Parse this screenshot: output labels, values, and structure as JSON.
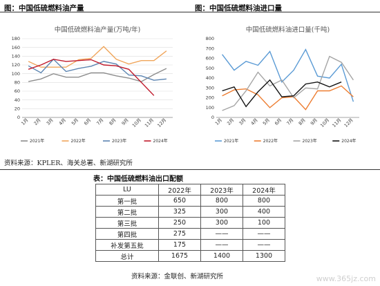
{
  "figure1": {
    "label": "图：中国低硫燃料油产量",
    "chart_data": {
      "type": "line",
      "title": "中国低硫燃料油产量(万吨/年)",
      "categories": [
        "1月",
        "2月",
        "3月",
        "4月",
        "5月",
        "6月",
        "7月",
        "8月",
        "9月",
        "10月",
        "11月",
        "12月"
      ],
      "ylim": [
        0,
        180
      ],
      "yticks": [
        0,
        20,
        40,
        60,
        80,
        100,
        120,
        140,
        160,
        180
      ],
      "grid": true,
      "legend_position": "bottom",
      "series": [
        {
          "name": "2021年",
          "color": "#8c8c8c",
          "values": [
            82,
            88,
            100,
            92,
            92,
            102,
            102,
            95,
            90,
            82,
            98,
            112
          ]
        },
        {
          "name": "2022年",
          "color": "#f0a55a",
          "values": [
            128,
            115,
            115,
            115,
            132,
            135,
            162,
            133,
            122,
            130,
            130,
            152
          ]
        },
        {
          "name": "2023年",
          "color": "#5b84b1",
          "values": [
            118,
            102,
            133,
            105,
            112,
            117,
            128,
            122,
            97,
            95,
            85,
            88
          ]
        },
        {
          "name": "2024年",
          "color": "#c0182a",
          "values": [
            110,
            120,
            133,
            128,
            130,
            132,
            120,
            118,
            110,
            80,
            50,
            null
          ]
        }
      ]
    }
  },
  "figure2": {
    "label": "图：中国低硫燃料油进口量",
    "chart_data": {
      "type": "line",
      "title": "中国低硫燃料油进口量(千吨)",
      "categories": [
        "1月",
        "2月",
        "3月",
        "4月",
        "5月",
        "6月",
        "7月",
        "8月",
        "9月",
        "10月",
        "11月",
        "12月"
      ],
      "ylim": [
        0,
        800
      ],
      "yticks": [
        0,
        100,
        200,
        300,
        400,
        500,
        600,
        700,
        800
      ],
      "grid": false,
      "legend_position": "bottom",
      "series": [
        {
          "name": "2021年",
          "color": "#5b9bd5",
          "values": [
            640,
            480,
            570,
            530,
            670,
            360,
            480,
            690,
            420,
            400,
            540,
            160
          ]
        },
        {
          "name": "2022年",
          "color": "#ed7d31",
          "values": [
            220,
            280,
            290,
            230,
            100,
            200,
            210,
            80,
            270,
            270,
            320,
            210
          ]
        },
        {
          "name": "2023年",
          "color": "#a5a5a5",
          "values": [
            70,
            120,
            270,
            460,
            320,
            380,
            200,
            300,
            290,
            620,
            560,
            380
          ]
        },
        {
          "name": "2024年",
          "color": "#111111",
          "values": [
            270,
            310,
            110,
            260,
            380,
            210,
            220,
            340,
            360,
            310,
            360,
            null
          ]
        }
      ]
    }
  },
  "source1": "资料来源：KPLER、海关总署、新湖研究所",
  "table": {
    "title": "表：中国低硫燃料油出口配额",
    "headers": [
      "LU",
      "2022年",
      "2023年",
      "2024年"
    ],
    "rows": [
      [
        "第一批",
        "650",
        "800",
        "800"
      ],
      [
        "第二批",
        "325",
        "300",
        "400"
      ],
      [
        "第三批",
        "250",
        "300",
        "100"
      ],
      [
        "第四批",
        "275",
        "——",
        "——"
      ],
      [
        "补发第五批",
        "175",
        "——",
        "——"
      ],
      [
        "总计",
        "1675",
        "1400",
        "1300"
      ]
    ]
  },
  "source2": "资料来源：金联创、新湖研究所",
  "watermark": "www.365jz.com"
}
